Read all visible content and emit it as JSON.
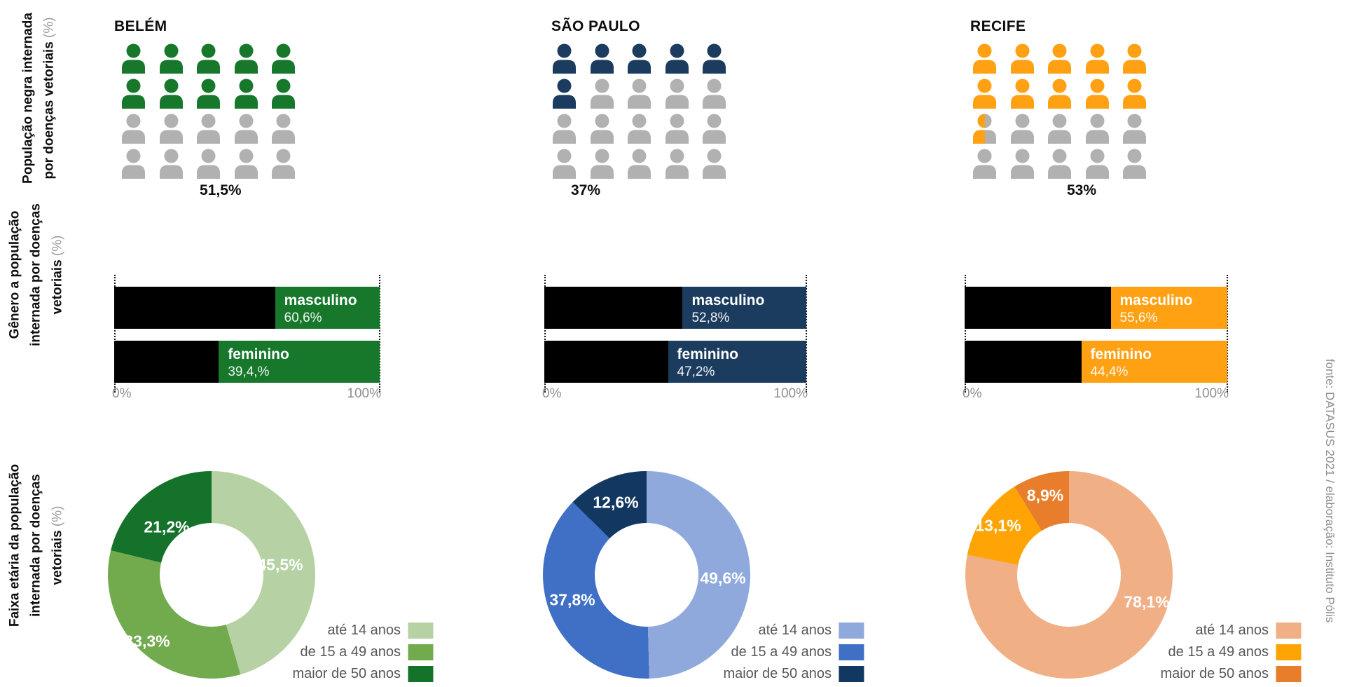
{
  "row_labels": [
    {
      "lines": [
        "População negra internada",
        "por doenças vetoriais"
      ],
      "suffix": "(%)"
    },
    {
      "lines": [
        "Gênero a população",
        "internada por doenças",
        "vetoriais"
      ],
      "suffix": "(%)"
    },
    {
      "lines": [
        "Faixa etária da população",
        "internada por doenças",
        "vetoriais"
      ],
      "suffix": "(%)"
    }
  ],
  "source_note": "fonte: DATASUS 2021 / elaboração: Instituto Pólis",
  "axis": {
    "min_label": "0%",
    "max_label": "100%"
  },
  "age_legend": [
    "até 14 anos",
    "de 15 a 49 anos",
    "maior de 50 anos"
  ],
  "colors": {
    "icon_gray": "#B1B1B1",
    "bar_black": "#000000"
  },
  "cities": [
    {
      "name": "BELÉM",
      "color": "#17782C",
      "pictogram": {
        "display": "51,5%",
        "value": 51.5,
        "total_icons": 20,
        "filled_icons": 10
      },
      "gender": [
        {
          "label": "masculino",
          "display": "60,6%",
          "value": 60.6
        },
        {
          "label": "feminino",
          "display": "39,4,%",
          "value": 39.4
        }
      ],
      "age": {
        "values": [
          45.5,
          33.3,
          21.2
        ],
        "display": [
          "45,5%",
          "33,3%",
          "21,2%"
        ],
        "colors": [
          "#B6D1A3",
          "#72AB4D",
          "#15722B"
        ]
      }
    },
    {
      "name": "SÃO PAULO",
      "color": "#1C3C5F",
      "pictogram": {
        "display": "37%",
        "value": 37,
        "total_icons": 20,
        "filled_icons": 6
      },
      "gender": [
        {
          "label": "masculino",
          "display": "52,8%",
          "value": 52.8
        },
        {
          "label": "feminino",
          "display": "47,2%",
          "value": 47.2
        }
      ],
      "age": {
        "values": [
          49.6,
          37.8,
          12.6
        ],
        "display": [
          "49,6%",
          "37,8%",
          "12,6%"
        ],
        "colors": [
          "#8FA9DC",
          "#3F70C5",
          "#123760"
        ]
      }
    },
    {
      "name": "RECIFE",
      "color": "#FFA113",
      "pictogram": {
        "display": "53%",
        "value": 53,
        "total_icons": 20,
        "filled_icons": 10.5
      },
      "gender": [
        {
          "label": "masculino",
          "display": "55,6%",
          "value": 55.6
        },
        {
          "label": "feminino",
          "display": "44,4%",
          "value": 44.4
        }
      ],
      "age": {
        "values": [
          78.1,
          13.1,
          8.9
        ],
        "display": [
          "78,1%",
          "13,1%",
          "8,9%"
        ],
        "colors": [
          "#F1AF85",
          "#FFA404",
          "#E87E2B"
        ]
      }
    }
  ],
  "chart_data": [
    {
      "type": "pictogram",
      "title": "População negra internada por doenças vetoriais (%)",
      "categories": [
        "BELÉM",
        "SÃO PAULO",
        "RECIFE"
      ],
      "values": [
        51.5,
        37,
        53
      ],
      "value_labels": [
        "51,5%",
        "37%",
        "53%"
      ],
      "icons_per_city": 20,
      "icons_colored": [
        10,
        6,
        10.5
      ],
      "icon_colors": [
        "#17782C",
        "#1C3C5F",
        "#FFA113"
      ],
      "unfilled_color": "#B1B1B1"
    },
    {
      "type": "bar",
      "orientation": "horizontal-stacked",
      "title": "Gênero a população internada por doenças vetoriais (%)",
      "categories": [
        "BELÉM",
        "SÃO PAULO",
        "RECIFE"
      ],
      "series": [
        {
          "name": "masculino",
          "values": [
            60.6,
            52.8,
            55.6
          ],
          "value_labels": [
            "60,6%",
            "52,8%",
            "55,6%"
          ]
        },
        {
          "name": "feminino",
          "values": [
            39.4,
            47.2,
            44.4
          ],
          "value_labels": [
            "39,4,%",
            "47,2%",
            "44,4%"
          ]
        }
      ],
      "xlim": [
        0,
        100
      ],
      "x_ticks": [
        "0%",
        "100%"
      ],
      "black_segment": "value",
      "remainder_colors": [
        "#17782C",
        "#1C3C5F",
        "#FFA113"
      ]
    },
    {
      "type": "pie",
      "subtype": "donut",
      "title": "Faixa etária da população internada por doenças vetoriais (%)",
      "legend": [
        "até 14 anos",
        "de 15 a 49 anos",
        "maior de 50 anos"
      ],
      "legend_position": "bottom-right",
      "series": [
        {
          "name": "BELÉM",
          "values": [
            45.5,
            33.3,
            21.2
          ],
          "value_labels": [
            "45,5%",
            "33,3%",
            "21,2%"
          ],
          "colors": [
            "#B6D1A3",
            "#72AB4D",
            "#15722B"
          ]
        },
        {
          "name": "SÃO PAULO",
          "values": [
            49.6,
            37.8,
            12.6
          ],
          "value_labels": [
            "49,6%",
            "37,8%",
            "12,6%"
          ],
          "colors": [
            "#8FA9DC",
            "#3F70C5",
            "#123760"
          ]
        },
        {
          "name": "RECIFE",
          "values": [
            78.1,
            13.1,
            8.9
          ],
          "value_labels": [
            "78,1%",
            "13,1%",
            "8,9%"
          ],
          "colors": [
            "#F1AF85",
            "#FFA404",
            "#E87E2B"
          ]
        }
      ]
    }
  ]
}
